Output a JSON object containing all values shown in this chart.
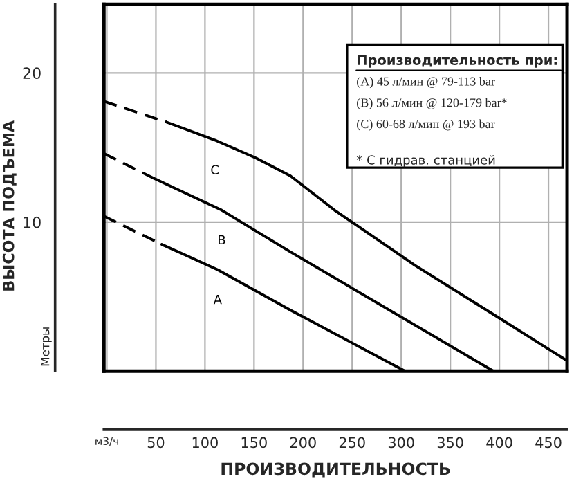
{
  "chart_data": {
    "type": "line",
    "xlabel": "ПРОИЗВОДИТЕЛЬНОСТЬ",
    "ylabel": "ВЫСОТА ПОДЪЕМА",
    "xlim": [
      -3,
      469
    ],
    "ylim": [
      0,
      24.6
    ],
    "xticks": [
      {
        "value": 0,
        "label": "м3/ч"
      },
      50,
      100,
      150,
      200,
      250,
      300,
      350,
      400,
      450
    ],
    "yticks": [
      {
        "value": 0,
        "label": null
      },
      10,
      20
    ],
    "grid": true,
    "marker": "none",
    "series": [
      {
        "color": "#000000",
        "line_style": "dashed",
        "x": [
          -3,
          61
        ],
        "values": [
          18.1,
          16.7
        ]
      },
      {
        "name": "C",
        "color": "#000000",
        "line_style": "solid",
        "x": [
          61,
          110,
          152,
          187,
          232,
          314,
          399,
          469
        ],
        "values": [
          16.7,
          15.5,
          14.3,
          13.1,
          10.8,
          7.1,
          3.6,
          0.7
        ]
      },
      {
        "color": "#000000",
        "line_style": "dashed",
        "x": [
          -3,
          49
        ],
        "values": [
          14.6,
          12.9
        ]
      },
      {
        "name": "B",
        "color": "#000000",
        "line_style": "solid",
        "x": [
          49,
          117,
          187,
          394
        ],
        "values": [
          12.9,
          10.8,
          8.0,
          0
        ]
      },
      {
        "color": "#000000",
        "line_style": "dashed",
        "x": [
          -3,
          56
        ],
        "values": [
          10.4,
          8.5
        ]
      },
      {
        "name": "A",
        "color": "#000000",
        "line_style": "solid",
        "x": [
          56,
          113,
          187,
          304
        ],
        "values": [
          8.5,
          6.8,
          4.1,
          0
        ]
      }
    ],
    "annotations": [
      "Метры",
      "Производительность при:",
      "(A) 45 л/мин @ 79-113 bar",
      "(B) 56 л/мин @ 120-179 bar*",
      "(C) 60-68 л/мин @ 193 bar",
      "* С гидрав. станцией"
    ]
  }
}
